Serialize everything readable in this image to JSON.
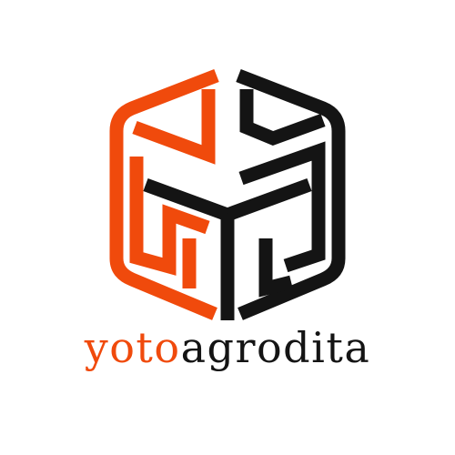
{
  "brand": {
    "name_part_accent": "yoto",
    "name_part_dark": "agrodita"
  },
  "colors": {
    "accent": "#f04a0c",
    "dark": "#141414",
    "background": "#ffffff"
  },
  "icons": {
    "mark": "hexagonal-cube-monogram-icon"
  }
}
